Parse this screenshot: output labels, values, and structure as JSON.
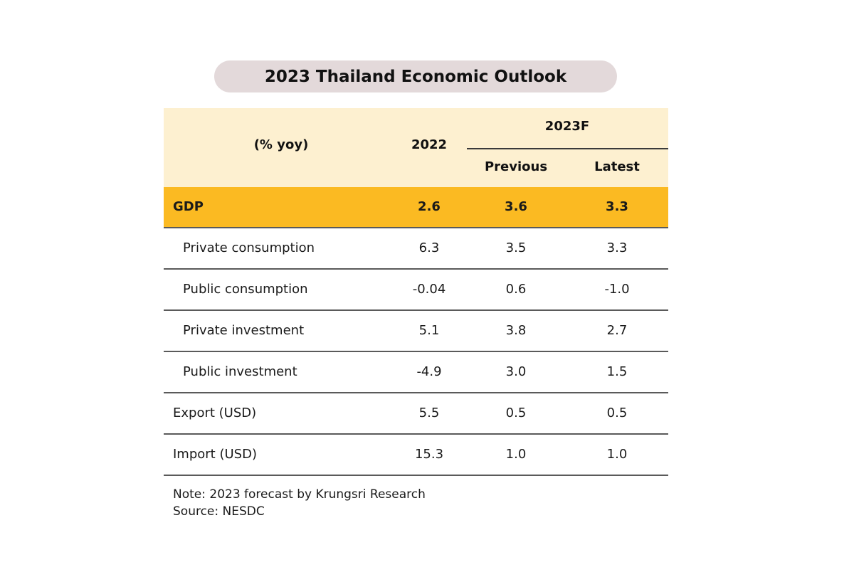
{
  "title": "2023 Thailand Economic Outlook",
  "header": {
    "label": "(% yoy)",
    "col_2022": "2022",
    "col_group": "2023F",
    "col_previous": "Previous",
    "col_latest": "Latest"
  },
  "rows": [
    {
      "label": "GDP",
      "v2022": "2.6",
      "previous": "3.6",
      "latest": "3.3"
    },
    {
      "label": "Private consumption",
      "v2022": "6.3",
      "previous": "3.5",
      "latest": "3.3"
    },
    {
      "label": "Public consumption",
      "v2022": "-0.04",
      "previous": "0.6",
      "latest": "-1.0"
    },
    {
      "label": "Private investment",
      "v2022": "5.1",
      "previous": "3.8",
      "latest": "2.7"
    },
    {
      "label": "Public investment",
      "v2022": "-4.9",
      "previous": "3.0",
      "latest": "1.5"
    },
    {
      "label": "Export (USD)",
      "v2022": "5.5",
      "previous": "0.5",
      "latest": "0.5"
    },
    {
      "label": "Import (USD)",
      "v2022": "15.3",
      "previous": "1.0",
      "latest": "1.0"
    }
  ],
  "note": "Note: 2023 forecast by Krungsri Research",
  "source": "Source: NESDC",
  "colors": {
    "title_bg": "#e3d9da",
    "header_bg": "#fdf0d0",
    "gdp_bg": "#fbba22",
    "rule": "#5a5a5a"
  }
}
